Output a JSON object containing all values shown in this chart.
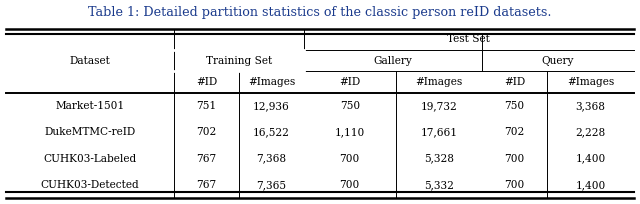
{
  "title": "Table 1: Detailed partition statistics of the classic person reID datasets.",
  "title_color": "#1a3a8c",
  "bg_color": "#ffffff",
  "figsize": [
    6.4,
    2.04
  ],
  "dpi": 100,
  "col_headers_row3": [
    "Dataset",
    "#ID",
    "#Images",
    "#ID",
    "#Images",
    "#ID",
    "#Images"
  ],
  "rows": [
    [
      "Market-1501",
      "751",
      "12,936",
      "750",
      "19,732",
      "750",
      "3,368"
    ],
    [
      "DukeMTMC-reID",
      "702",
      "16,522",
      "1,110",
      "17,661",
      "702",
      "2,228"
    ],
    [
      "CUHK03-Labeled",
      "767",
      "7,368",
      "700",
      "5,328",
      "700",
      "1,400"
    ],
    [
      "CUHK03-Detected",
      "767",
      "7,365",
      "700",
      "5,332",
      "700",
      "1,400"
    ]
  ]
}
